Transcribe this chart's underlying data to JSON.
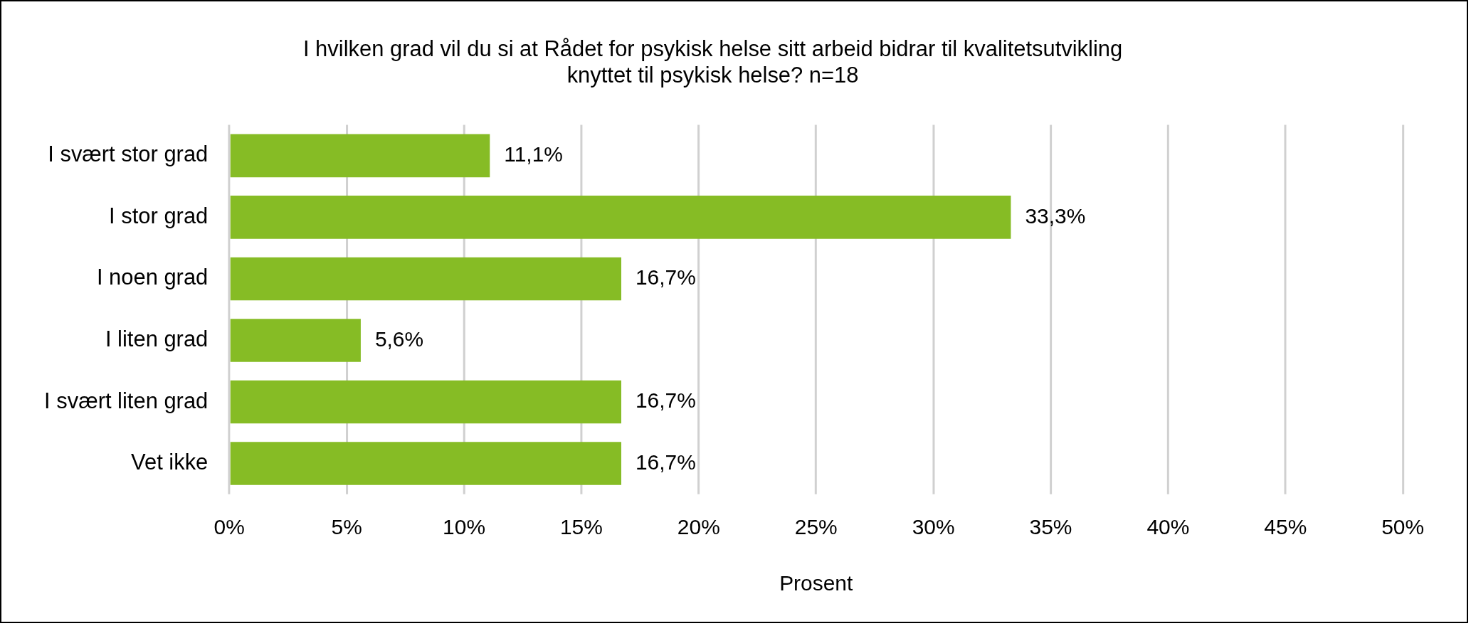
{
  "chart_data": {
    "type": "bar",
    "orientation": "horizontal",
    "title": "I hvilken grad vil du si at Rådet for psykisk helse sitt arbeid bidrar til kvalitetsutvikling\nknyttet til psykisk helse? n=18",
    "xlabel": "Prosent",
    "categories": [
      "I svært stor grad",
      "I stor grad",
      "I noen grad",
      "I liten grad",
      "I svært liten grad",
      "Vet ikke"
    ],
    "values": [
      11.1,
      33.3,
      16.7,
      5.6,
      16.7,
      16.7
    ],
    "value_labels": [
      "11,1%",
      "33,3%",
      "16,7%",
      "5,6%",
      "16,7%",
      "16,7%"
    ],
    "color": "#86bc25",
    "xlim": [
      0,
      50
    ],
    "xticks": [
      {
        "value": 0,
        "label": "0%"
      },
      {
        "value": 5,
        "label": "5%"
      },
      {
        "value": 10,
        "label": "10%"
      },
      {
        "value": 15,
        "label": "15%"
      },
      {
        "value": 20,
        "label": "20%"
      },
      {
        "value": 25,
        "label": "25%"
      },
      {
        "value": 30,
        "label": "30%"
      },
      {
        "value": 35,
        "label": "35%"
      },
      {
        "value": 40,
        "label": "40%"
      },
      {
        "value": 45,
        "label": "45%"
      },
      {
        "value": 50,
        "label": "50%"
      }
    ],
    "grid": "x",
    "legend": false
  }
}
